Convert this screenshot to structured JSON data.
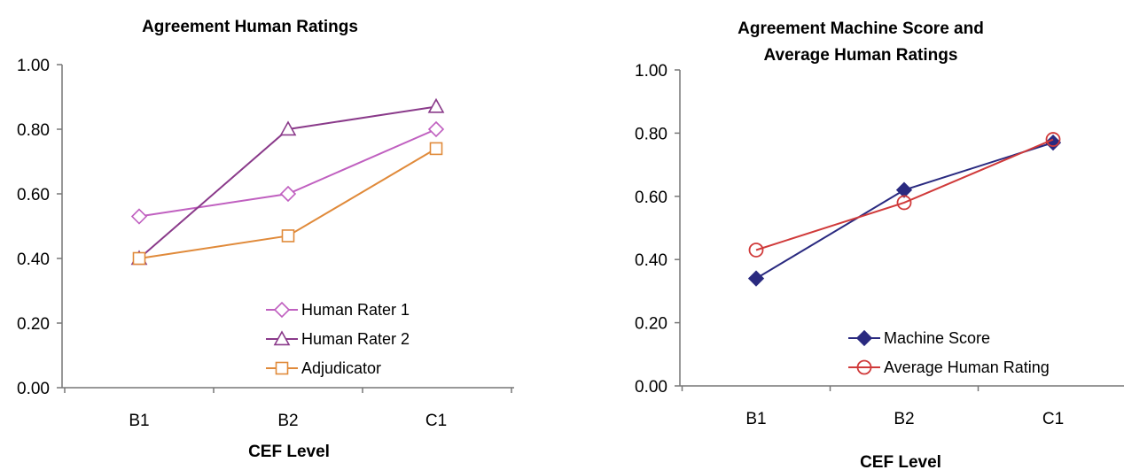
{
  "chart_data": [
    {
      "type": "line",
      "title": "Agreement Human Ratings",
      "xlabel": "CEF Level",
      "ylabel": "",
      "categories": [
        "B1",
        "B2",
        "C1"
      ],
      "ylim": [
        0,
        1
      ],
      "yticks": [
        "0.00",
        "0.20",
        "0.40",
        "0.60",
        "0.80",
        "1.00"
      ],
      "legend_position": "bottom-right",
      "grid": false,
      "series": [
        {
          "name": "Human Rater 1",
          "values": [
            0.53,
            0.6,
            0.8
          ],
          "color": "#c060c0",
          "marker": "diamond-open"
        },
        {
          "name": "Human Rater 2",
          "values": [
            0.4,
            0.8,
            0.87
          ],
          "color": "#8a3a8a",
          "marker": "triangle-open"
        },
        {
          "name": "Adjudicator",
          "values": [
            0.4,
            0.47,
            0.74
          ],
          "color": "#e08a3a",
          "marker": "square-open"
        }
      ]
    },
    {
      "type": "line",
      "title": "Agreement Machine Score and Average Human Ratings",
      "title_lines": [
        "Agreement Machine Score and",
        "Average Human Ratings"
      ],
      "xlabel": "CEF Level",
      "ylabel": "",
      "categories": [
        "B1",
        "B2",
        "C1"
      ],
      "ylim": [
        0,
        1
      ],
      "yticks": [
        "0.00",
        "0.20",
        "0.40",
        "0.60",
        "0.80",
        "1.00"
      ],
      "legend_position": "bottom-right",
      "grid": false,
      "series": [
        {
          "name": "Machine Score",
          "values": [
            0.34,
            0.62,
            0.77
          ],
          "color": "#2a2a80",
          "marker": "diamond-filled"
        },
        {
          "name": "Average Human Rating",
          "values": [
            0.43,
            0.58,
            0.78
          ],
          "color": "#d03a3a",
          "marker": "circle-open"
        }
      ]
    }
  ]
}
